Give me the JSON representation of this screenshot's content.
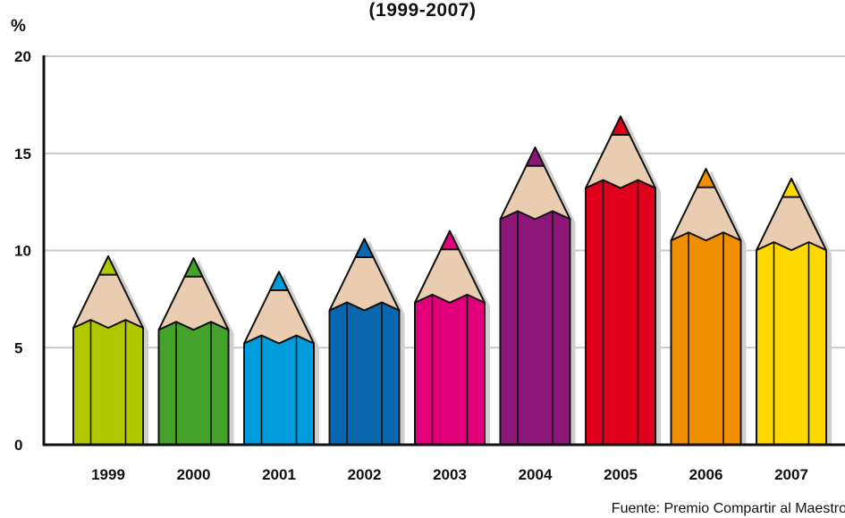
{
  "chart_data": {
    "type": "bar",
    "title": "(1999-2007)",
    "ylabel": "%",
    "xlabel": "",
    "categories": [
      "1999",
      "2000",
      "2001",
      "2002",
      "2003",
      "2004",
      "2005",
      "2006",
      "2007"
    ],
    "series": [
      {
        "values": [
          9.7,
          9.6,
          8.9,
          10.6,
          11.0,
          15.3,
          16.9,
          14.2,
          13.7
        ]
      }
    ],
    "colors": [
      "#b0c800",
      "#44a12a",
      "#009cdc",
      "#0a67ad",
      "#e2007a",
      "#8c1778",
      "#e0001b",
      "#f09000",
      "#ffd800"
    ],
    "ylim": [
      0,
      20
    ],
    "yticks": [
      "0",
      "5",
      "10",
      "15",
      "20"
    ],
    "grid": true,
    "legend": "none",
    "source": "Fuente: Premio Compartir al Maestro"
  }
}
